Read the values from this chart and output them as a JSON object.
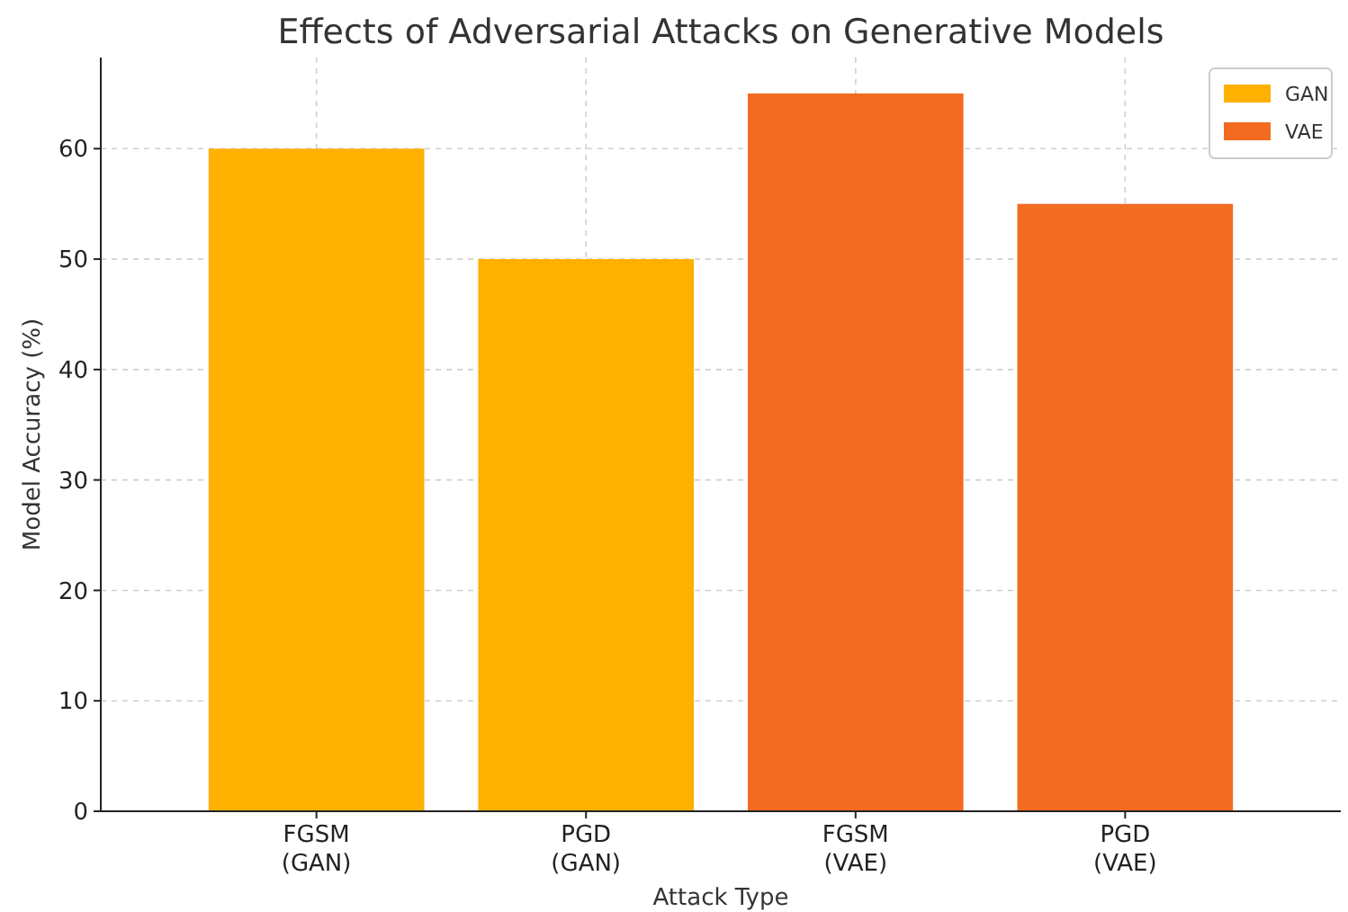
{
  "chart_data": {
    "type": "bar",
    "title": "Effects of Adversarial Attacks on Generative Models",
    "xlabel": "Attack Type",
    "ylabel": "Model Accuracy (%)",
    "categories": [
      "FGSM\n(GAN)",
      "PGD\n(GAN)",
      "FGSM\n(VAE)",
      "PGD\n(VAE)"
    ],
    "series": [
      {
        "name": "GAN",
        "color": "#ffb000",
        "values": [
          60,
          50,
          null,
          null
        ]
      },
      {
        "name": "VAE",
        "color": "#f26b21",
        "values": [
          null,
          null,
          65,
          55
        ]
      }
    ],
    "ylim": [
      0,
      68.25
    ],
    "yticks": [
      0,
      10,
      20,
      30,
      40,
      50,
      60
    ],
    "grid": true,
    "legend": "top right"
  }
}
